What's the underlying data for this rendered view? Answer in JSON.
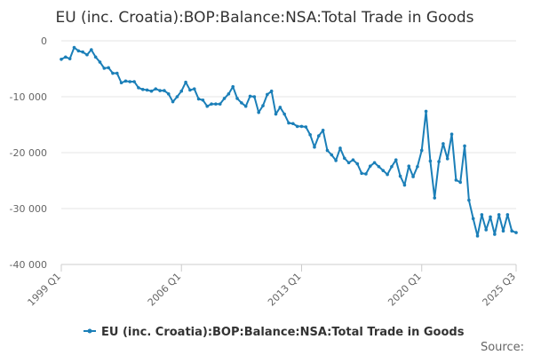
{
  "chart_data": {
    "type": "line",
    "title": "EU (inc. Croatia):BOP:Balance:NSA:Total Trade in Goods",
    "x_tick_labels": [
      "1999 Q1",
      "2006 Q1",
      "2013 Q1",
      "2020 Q1",
      "2025 Q3"
    ],
    "y_tick_labels": [
      "0",
      "-10 000",
      "-20 000",
      "-30 000",
      "-40 000"
    ],
    "ylim": [
      -40000,
      0
    ],
    "series": [
      {
        "name": "EU (inc. Croatia):BOP:Balance:NSA:Total Trade in Goods",
        "color": "#1b7fb8",
        "start": "1999 Q1",
        "values": [
          -3300,
          -2900,
          -3200,
          -1200,
          -1800,
          -2000,
          -2500,
          -1600,
          -2900,
          -3800,
          -4900,
          -4800,
          -5800,
          -5800,
          -7500,
          -7200,
          -7300,
          -7300,
          -8400,
          -8700,
          -8800,
          -9000,
          -8600,
          -8900,
          -8900,
          -9500,
          -10900,
          -10000,
          -9000,
          -7400,
          -8800,
          -8600,
          -10400,
          -10600,
          -11700,
          -11300,
          -11300,
          -11300,
          -10300,
          -9500,
          -8200,
          -10300,
          -11100,
          -11700,
          -9900,
          -10000,
          -12800,
          -11600,
          -9600,
          -9000,
          -13100,
          -11900,
          -13100,
          -14700,
          -14800,
          -15300,
          -15300,
          -15400,
          -16800,
          -19000,
          -17000,
          -16000,
          -19600,
          -20400,
          -21400,
          -19200,
          -21000,
          -21800,
          -21300,
          -22000,
          -23700,
          -23800,
          -22400,
          -21800,
          -22500,
          -23200,
          -23900,
          -22500,
          -21300,
          -24200,
          -25800,
          -22400,
          -24300,
          -22500,
          -19600,
          -12600,
          -21500,
          -28100,
          -21600,
          -18400,
          -21100,
          -16700,
          -24900,
          -25300,
          -18800,
          -28500,
          -31800,
          -34900,
          -31100,
          -33800,
          -31500,
          -34600,
          -31100,
          -34000,
          -31100,
          -34000,
          -34300
        ]
      }
    ],
    "legend": "bottom-center",
    "source_label": "Source:"
  }
}
